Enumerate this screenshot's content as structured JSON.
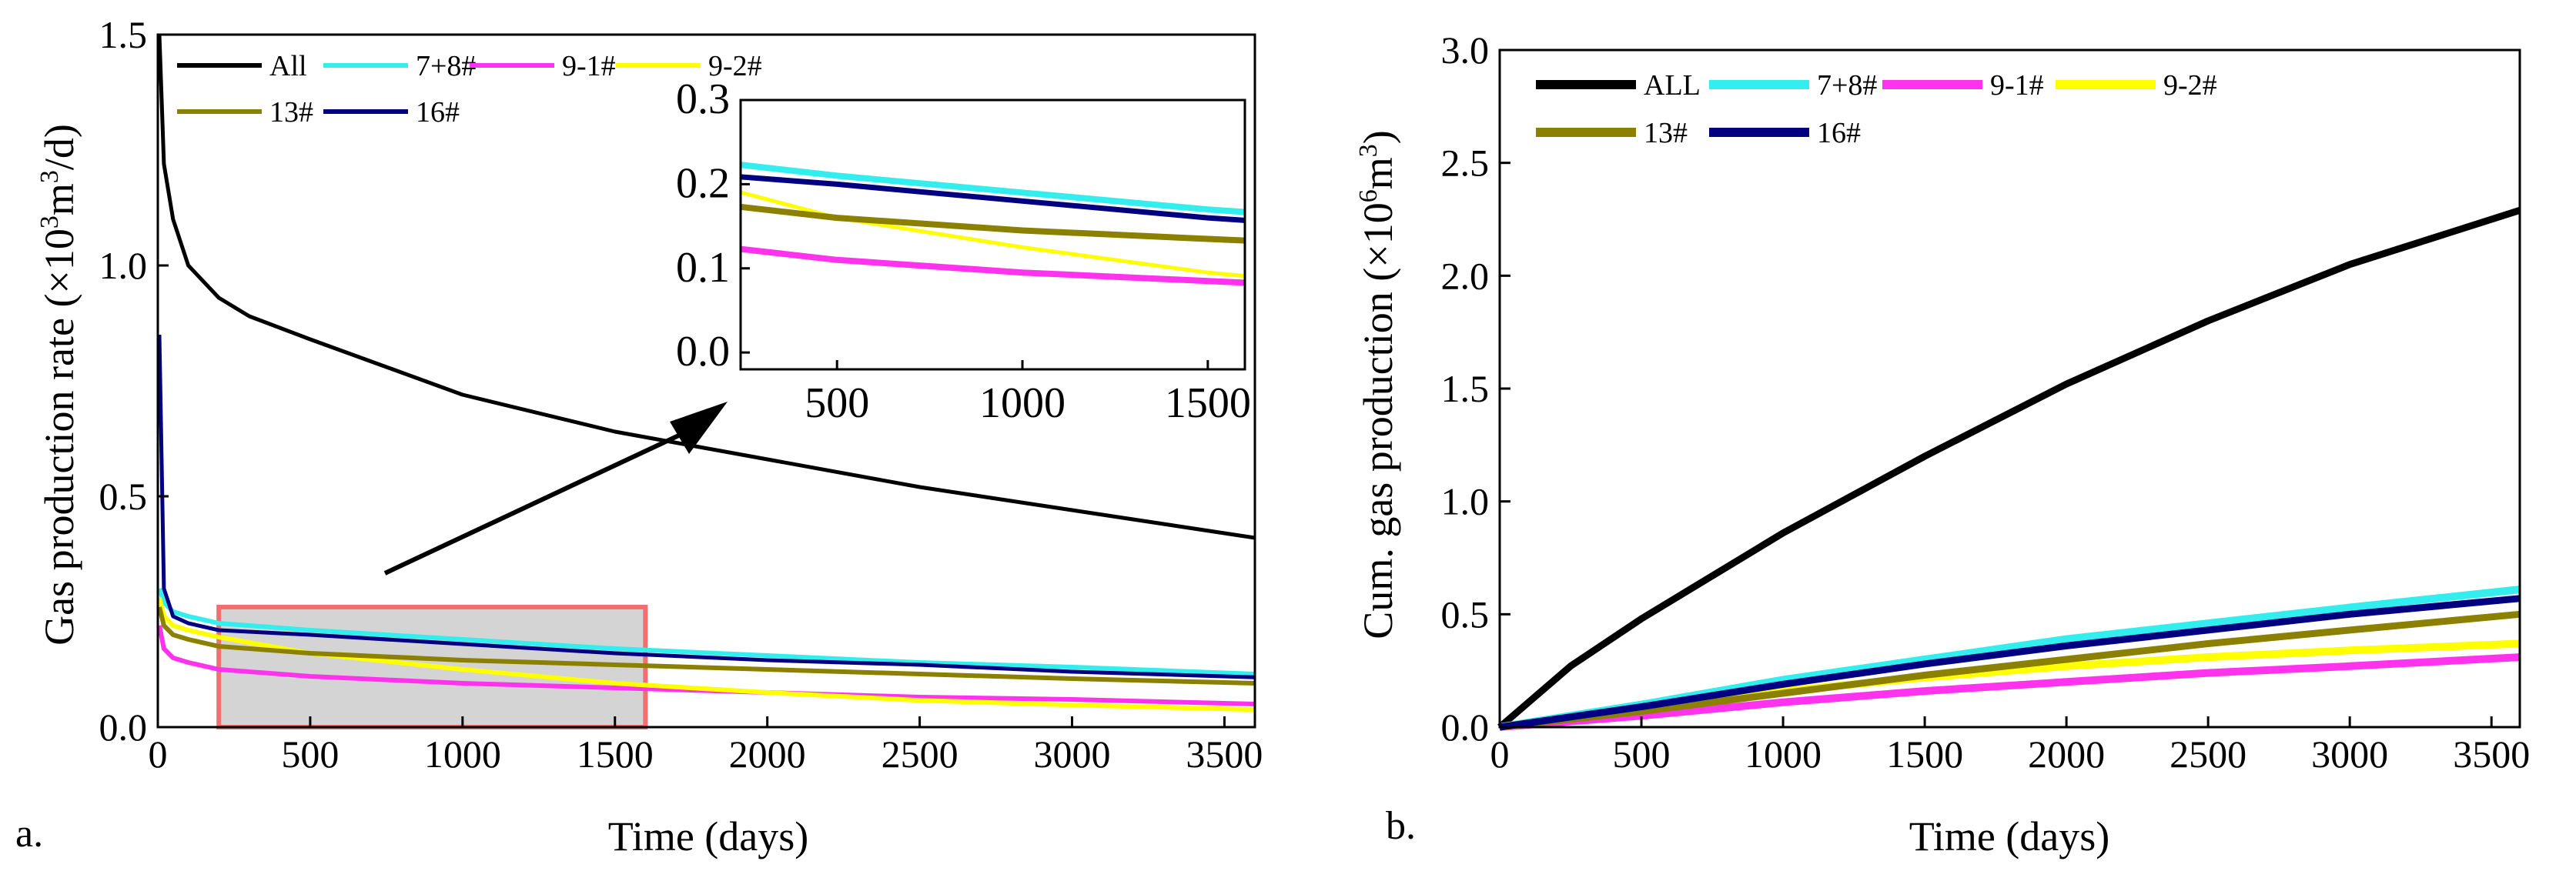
{
  "figure": {
    "panel_a_label": "a.",
    "panel_b_label": "b."
  },
  "chart_data": [
    {
      "type": "line",
      "id": "a",
      "title": "",
      "xlabel": "Time (days)",
      "ylabel_parts": [
        "Gas production rate (×10",
        "3",
        "m",
        "3",
        "/d)"
      ],
      "xlim": [
        0,
        3600
      ],
      "ylim": [
        0,
        1.5
      ],
      "xticks": [
        "0",
        "500",
        "1000",
        "1500",
        "2000",
        "2500",
        "3000",
        "3500"
      ],
      "yticks": [
        "0.0",
        "0.5",
        "1.0",
        "1.5"
      ],
      "legend_position": "top-left",
      "series": [
        {
          "name": "All",
          "color": "#000000",
          "x": [
            5,
            20,
            50,
            100,
            200,
            300,
            500,
            750,
            1000,
            1500,
            2000,
            2500,
            3000,
            3600
          ],
          "y": [
            1.5,
            1.22,
            1.1,
            1.0,
            0.93,
            0.89,
            0.84,
            0.78,
            0.72,
            0.64,
            0.58,
            0.52,
            0.47,
            0.41
          ]
        },
        {
          "name": "7+8#",
          "color": "#33eeee",
          "x": [
            5,
            20,
            50,
            100,
            200,
            500,
            1000,
            1500,
            2000,
            2500,
            3000,
            3600
          ],
          "y": [
            0.3,
            0.27,
            0.25,
            0.24,
            0.225,
            0.21,
            0.19,
            0.17,
            0.155,
            0.14,
            0.13,
            0.115
          ]
        },
        {
          "name": "9-1#",
          "color": "#ff33ee",
          "x": [
            5,
            20,
            50,
            100,
            200,
            500,
            1000,
            1500,
            2000,
            2500,
            3000,
            3600
          ],
          "y": [
            0.22,
            0.17,
            0.15,
            0.14,
            0.125,
            0.11,
            0.095,
            0.085,
            0.075,
            0.065,
            0.06,
            0.05
          ]
        },
        {
          "name": "9-2#",
          "color": "#ffff00",
          "x": [
            5,
            20,
            50,
            100,
            200,
            500,
            1000,
            1500,
            2000,
            2500,
            3000,
            3600
          ],
          "y": [
            0.28,
            0.24,
            0.22,
            0.21,
            0.195,
            0.16,
            0.125,
            0.095,
            0.075,
            0.058,
            0.048,
            0.038
          ]
        },
        {
          "name": "13#",
          "color": "#8b8000",
          "x": [
            5,
            20,
            50,
            100,
            200,
            500,
            1000,
            1500,
            2000,
            2500,
            3000,
            3600
          ],
          "y": [
            0.26,
            0.22,
            0.2,
            0.19,
            0.175,
            0.16,
            0.145,
            0.135,
            0.125,
            0.115,
            0.105,
            0.095
          ]
        },
        {
          "name": "16#",
          "color": "#000080",
          "x": [
            5,
            20,
            50,
            100,
            200,
            500,
            1000,
            1500,
            2000,
            2500,
            3000,
            3600
          ],
          "y": [
            0.85,
            0.3,
            0.24,
            0.225,
            0.21,
            0.2,
            0.18,
            0.16,
            0.145,
            0.135,
            0.12,
            0.108
          ]
        }
      ],
      "highlight_region": {
        "x": [
          200,
          1600
        ],
        "y": [
          0,
          0.26
        ]
      },
      "inset": {
        "xlim": [
          240,
          1600
        ],
        "ylim": [
          -0.02,
          0.3
        ],
        "xticks": [
          "500",
          "1000",
          "1500"
        ],
        "yticks": [
          "0.0",
          "0.1",
          "0.2",
          "0.3"
        ]
      }
    },
    {
      "type": "line",
      "id": "b",
      "title": "",
      "xlabel": "Time (days)",
      "ylabel_parts": [
        "Cum. gas production (×10",
        "6",
        "m",
        "3",
        ")"
      ],
      "xlim": [
        0,
        3600
      ],
      "ylim": [
        0,
        3.0
      ],
      "xticks": [
        "0",
        "500",
        "1000",
        "1500",
        "2000",
        "2500",
        "3000",
        "3500"
      ],
      "yticks": [
        "0.0",
        "0.5",
        "1.0",
        "1.5",
        "2.0",
        "2.5",
        "3.0"
      ],
      "legend_position": "top-left",
      "series": [
        {
          "name": "ALL",
          "color": "#000000",
          "x": [
            0,
            250,
            500,
            1000,
            1500,
            2000,
            2500,
            3000,
            3600
          ],
          "y": [
            0,
            0.27,
            0.48,
            0.86,
            1.2,
            1.52,
            1.8,
            2.05,
            2.29
          ]
        },
        {
          "name": "7+8#",
          "color": "#33eeee",
          "x": [
            0,
            500,
            1000,
            1500,
            2000,
            2500,
            3000,
            3600
          ],
          "y": [
            0,
            0.1,
            0.21,
            0.3,
            0.39,
            0.46,
            0.53,
            0.61
          ]
        },
        {
          "name": "9-1#",
          "color": "#ff33ee",
          "x": [
            0,
            500,
            1000,
            1500,
            2000,
            2500,
            3000,
            3600
          ],
          "y": [
            0,
            0.05,
            0.11,
            0.16,
            0.2,
            0.24,
            0.27,
            0.31
          ]
        },
        {
          "name": "9-2#",
          "color": "#ffff00",
          "x": [
            0,
            500,
            1000,
            1500,
            2000,
            2500,
            3000,
            3600
          ],
          "y": [
            0,
            0.08,
            0.16,
            0.22,
            0.27,
            0.31,
            0.34,
            0.37
          ]
        },
        {
          "name": "13#",
          "color": "#8b8000",
          "x": [
            0,
            500,
            1000,
            1500,
            2000,
            2500,
            3000,
            3600
          ],
          "y": [
            0,
            0.07,
            0.15,
            0.23,
            0.3,
            0.37,
            0.43,
            0.5
          ]
        },
        {
          "name": "16#",
          "color": "#000080",
          "x": [
            0,
            500,
            1000,
            1500,
            2000,
            2500,
            3000,
            3600
          ],
          "y": [
            0,
            0.09,
            0.19,
            0.28,
            0.36,
            0.43,
            0.5,
            0.57
          ]
        }
      ]
    }
  ]
}
